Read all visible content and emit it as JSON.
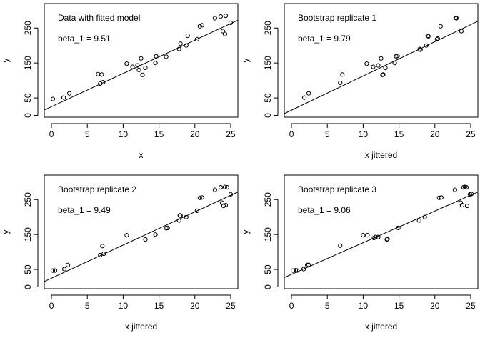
{
  "chart_data": [
    {
      "type": "scatter",
      "title": "",
      "annotation": "Data with fitted model",
      "beta_label": "beta_1 = 9.51",
      "xlabel": "x",
      "ylabel": "y",
      "xlim": [
        -1,
        26
      ],
      "ylim": [
        -5,
        320
      ],
      "xticks": [
        0,
        5,
        10,
        15,
        20,
        25
      ],
      "yticks": [
        0,
        50,
        150,
        250
      ],
      "fit": {
        "intercept": 25,
        "slope": 9.51
      },
      "points": [
        [
          0.2,
          47
        ],
        [
          1.7,
          51
        ],
        [
          2.5,
          63
        ],
        [
          6.5,
          118
        ],
        [
          6.8,
          91
        ],
        [
          7.0,
          117
        ],
        [
          7.2,
          95
        ],
        [
          10.5,
          148
        ],
        [
          11.3,
          139
        ],
        [
          12.0,
          143
        ],
        [
          12.2,
          130
        ],
        [
          12.5,
          163
        ],
        [
          12.7,
          116
        ],
        [
          13.1,
          136
        ],
        [
          14.5,
          150
        ],
        [
          14.6,
          169
        ],
        [
          16.0,
          168
        ],
        [
          17.8,
          190
        ],
        [
          18.0,
          205
        ],
        [
          18.8,
          200
        ],
        [
          19.0,
          228
        ],
        [
          20.3,
          218
        ],
        [
          20.7,
          255
        ],
        [
          21.0,
          258
        ],
        [
          22.8,
          278
        ],
        [
          23.6,
          283
        ],
        [
          23.9,
          241
        ],
        [
          24.2,
          233
        ],
        [
          24.3,
          285
        ],
        [
          25.0,
          265
        ]
      ]
    },
    {
      "type": "scatter",
      "title": "",
      "annotation": "Bootstrap replicate 1",
      "beta_label": "beta_1 = 9.79",
      "xlabel": "x jittered",
      "ylabel": "y",
      "xlim": [
        -1,
        26
      ],
      "ylim": [
        -5,
        320
      ],
      "xticks": [
        0,
        5,
        10,
        15,
        20,
        25
      ],
      "yticks": [
        0,
        50,
        150,
        250
      ],
      "fit": {
        "intercept": 15,
        "slope": 9.79
      },
      "points": [
        [
          1.8,
          51
        ],
        [
          2.4,
          63
        ],
        [
          6.8,
          93
        ],
        [
          7.1,
          117
        ],
        [
          10.5,
          148
        ],
        [
          11.4,
          139
        ],
        [
          12.1,
          143
        ],
        [
          12.5,
          163
        ],
        [
          12.7,
          116
        ],
        [
          12.8,
          117
        ],
        [
          13.1,
          136
        ],
        [
          14.4,
          150
        ],
        [
          14.6,
          169
        ],
        [
          14.8,
          170
        ],
        [
          17.9,
          190
        ],
        [
          18.0,
          188
        ],
        [
          18.8,
          200
        ],
        [
          19.0,
          228
        ],
        [
          19.1,
          226
        ],
        [
          20.3,
          218
        ],
        [
          20.4,
          220
        ],
        [
          20.8,
          255
        ],
        [
          22.9,
          279
        ],
        [
          23.0,
          278
        ],
        [
          23.7,
          241
        ]
      ]
    },
    {
      "type": "scatter",
      "title": "",
      "annotation": "Bootstrap replicate 2",
      "beta_label": "beta_1 = 9.49",
      "xlabel": "x jittered",
      "ylabel": "y",
      "xlim": [
        -1,
        26
      ],
      "ylim": [
        -5,
        320
      ],
      "xticks": [
        0,
        5,
        10,
        15,
        20,
        25
      ],
      "yticks": [
        0,
        50,
        150,
        250
      ],
      "fit": {
        "intercept": 25,
        "slope": 9.49
      },
      "points": [
        [
          0.2,
          47
        ],
        [
          0.5,
          47
        ],
        [
          1.8,
          51
        ],
        [
          2.3,
          63
        ],
        [
          6.8,
          91
        ],
        [
          7.1,
          117
        ],
        [
          7.3,
          95
        ],
        [
          10.5,
          148
        ],
        [
          13.1,
          136
        ],
        [
          14.5,
          150
        ],
        [
          16.0,
          168
        ],
        [
          16.2,
          169
        ],
        [
          17.8,
          190
        ],
        [
          17.9,
          205
        ],
        [
          18.0,
          204
        ],
        [
          18.8,
          200
        ],
        [
          20.3,
          218
        ],
        [
          20.7,
          255
        ],
        [
          21.0,
          256
        ],
        [
          22.8,
          278
        ],
        [
          23.6,
          285
        ],
        [
          23.8,
          241
        ],
        [
          24.0,
          232
        ],
        [
          24.2,
          286
        ],
        [
          24.3,
          234
        ],
        [
          24.5,
          285
        ],
        [
          25.0,
          265
        ]
      ]
    },
    {
      "type": "scatter",
      "title": "",
      "annotation": "Bootstrap replicate 3",
      "beta_label": "beta_1 = 9.06",
      "xlabel": "x jittered",
      "ylabel": "y",
      "xlim": [
        -1,
        26
      ],
      "ylim": [
        -5,
        320
      ],
      "xticks": [
        0,
        5,
        10,
        15,
        20,
        25
      ],
      "yticks": [
        0,
        50,
        150,
        250
      ],
      "fit": {
        "intercept": 36,
        "slope": 9.06
      },
      "points": [
        [
          0.2,
          47
        ],
        [
          0.6,
          48
        ],
        [
          0.8,
          47
        ],
        [
          1.7,
          51
        ],
        [
          2.2,
          63
        ],
        [
          2.4,
          63
        ],
        [
          6.8,
          118
        ],
        [
          10.0,
          148
        ],
        [
          10.6,
          148
        ],
        [
          11.5,
          140
        ],
        [
          11.7,
          143
        ],
        [
          12.1,
          143
        ],
        [
          13.3,
          136
        ],
        [
          13.4,
          137
        ],
        [
          14.9,
          169
        ],
        [
          17.8,
          190
        ],
        [
          18.6,
          200
        ],
        [
          20.6,
          255
        ],
        [
          20.9,
          256
        ],
        [
          22.8,
          278
        ],
        [
          23.6,
          241
        ],
        [
          23.8,
          234
        ],
        [
          24.0,
          285
        ],
        [
          24.2,
          286
        ],
        [
          24.4,
          285
        ],
        [
          24.5,
          232
        ],
        [
          24.9,
          265
        ],
        [
          25.1,
          266
        ]
      ]
    }
  ]
}
